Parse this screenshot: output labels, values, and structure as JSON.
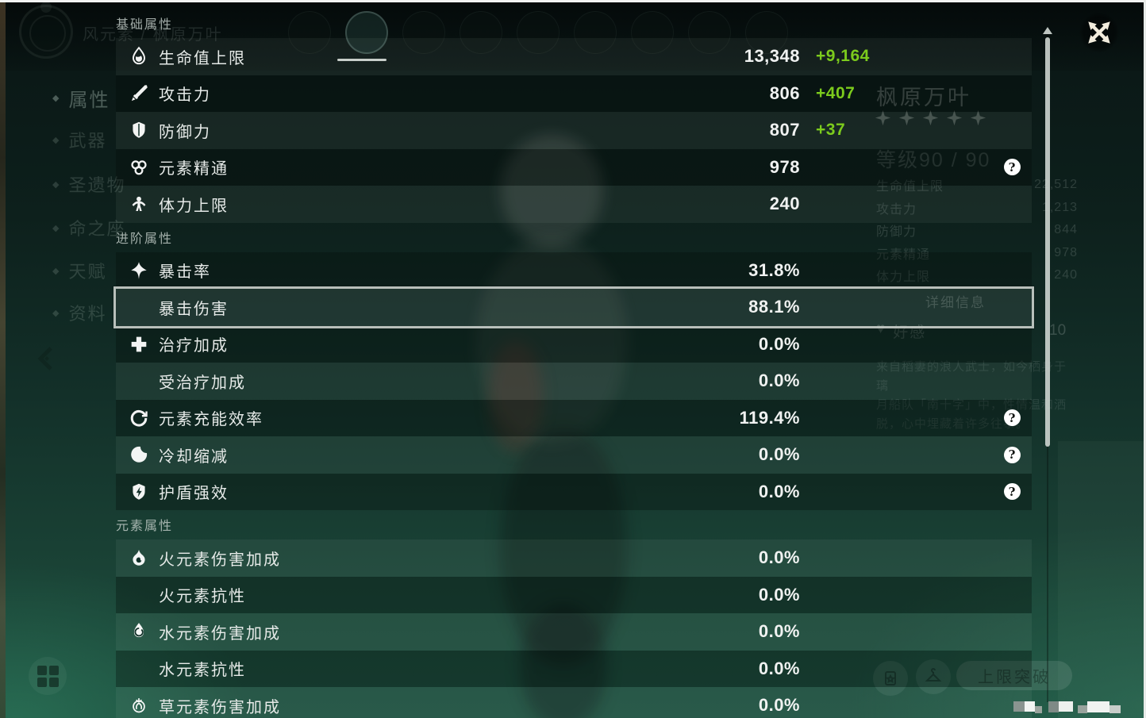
{
  "colors": {
    "bonus_green": "#7ccb1d",
    "selection_border": "#d2d8d2",
    "value_white": "#f0f2f1",
    "help_icon_bg": "#ffffff",
    "close_icon_cream": "#f2ecdd"
  },
  "panel": {
    "help_glyph": "?",
    "sections": [
      {
        "title": "基础属性",
        "rows": [
          {
            "icon": "hp-icon",
            "label": "生命值上限",
            "value": "13,348",
            "bonus": "+9,164"
          },
          {
            "icon": "atk-icon",
            "label": "攻击力",
            "value": "806",
            "bonus": "+407"
          },
          {
            "icon": "def-icon",
            "label": "防御力",
            "value": "807",
            "bonus": "+37"
          },
          {
            "icon": "em-icon",
            "label": "元素精通",
            "value": "978",
            "help": true
          },
          {
            "icon": "stamina-icon",
            "label": "体力上限",
            "value": "240"
          }
        ]
      },
      {
        "title": "进阶属性",
        "rows": [
          {
            "icon": "crit-rate-icon",
            "label": "暴击率",
            "value": "31.8%"
          },
          {
            "icon": null,
            "label": "暴击伤害",
            "value": "88.1%",
            "selected": true
          },
          {
            "icon": "healing-bonus-icon",
            "label": "治疗加成",
            "value": "0.0%"
          },
          {
            "icon": null,
            "label": "受治疗加成",
            "value": "0.0%"
          },
          {
            "icon": "energy-recharge-icon",
            "label": "元素充能效率",
            "value": "119.4%",
            "help": true
          },
          {
            "icon": "cooldown-icon",
            "label": "冷却缩减",
            "value": "0.0%",
            "help": true
          },
          {
            "icon": "shield-strength-icon",
            "label": "护盾强效",
            "value": "0.0%",
            "help": true
          }
        ]
      },
      {
        "title": "元素属性",
        "rows": [
          {
            "icon": "pyro-icon",
            "label": "火元素伤害加成",
            "value": "0.0%"
          },
          {
            "icon": null,
            "label": "火元素抗性",
            "value": "0.0%"
          },
          {
            "icon": "hydro-icon",
            "label": "水元素伤害加成",
            "value": "0.0%"
          },
          {
            "icon": null,
            "label": "水元素抗性",
            "value": "0.0%"
          },
          {
            "icon": "dendro-icon",
            "label": "草元素伤害加成",
            "value": "0.0%"
          }
        ]
      }
    ]
  },
  "background": {
    "element_title": "风元素 / 枫原万叶",
    "sidebar_bullet": "◆",
    "sidebar": [
      {
        "label": "属性",
        "selected": true
      },
      {
        "label": "武器"
      },
      {
        "label": "圣遗物"
      },
      {
        "label": "命之座"
      },
      {
        "label": "天赋"
      },
      {
        "label": "资料"
      }
    ],
    "avatar_count": 9,
    "character": {
      "name": "枫原万叶",
      "stars": 5,
      "level": "等级90 / 90",
      "stats": [
        {
          "label": "生命值上限",
          "value": "22,512"
        },
        {
          "label": "攻击力",
          "value": "1,213"
        },
        {
          "label": "防御力",
          "value": "844"
        },
        {
          "label": "元素精通",
          "value": "978"
        },
        {
          "label": "体力上限",
          "value": "240"
        }
      ],
      "details_button": "详细信息",
      "friendship": {
        "heart_glyph": "♥",
        "label": "好感",
        "value": "10"
      },
      "description_lines": [
        "来自稻妻的浪人武士，如今栖身于璃",
        "月船队「南十字」中，性情温和洒",
        "脱，心中埋藏着许多往事。"
      ]
    },
    "ascend_button": "上限突破",
    "scroll_up_glyph": "▲"
  }
}
